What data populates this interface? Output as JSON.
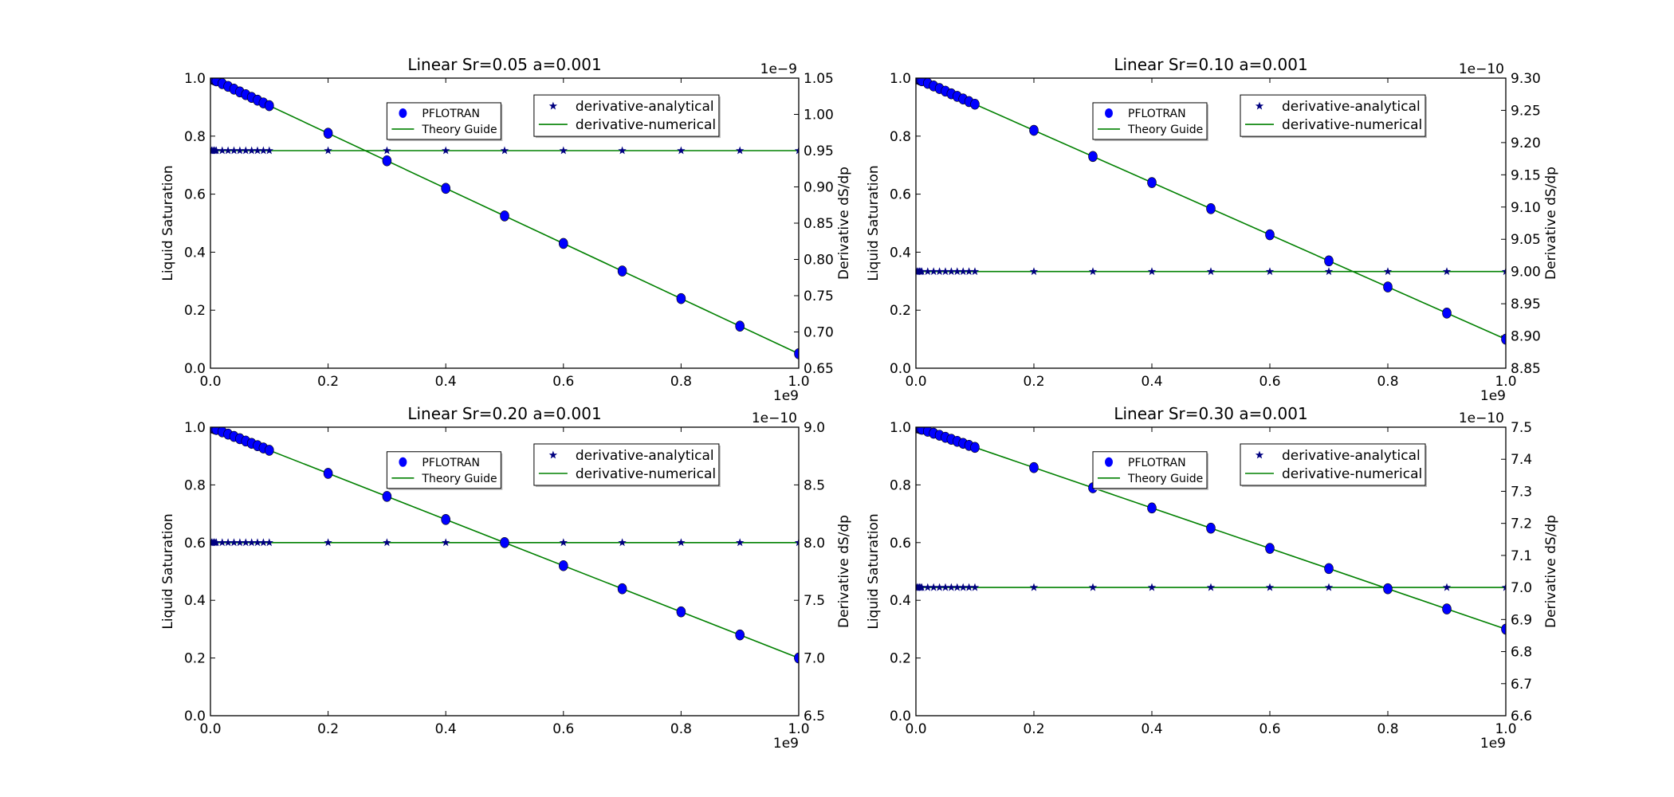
{
  "chart_data": [
    {
      "type": "line",
      "title": "Linear Sr=0.05 a=0.001",
      "xlabel": "",
      "x_offset_label": "1e9",
      "ylabel": "Liquid Saturation",
      "ylim": [
        0,
        1.0
      ],
      "yticks": [
        "0.0",
        "0.2",
        "0.4",
        "0.6",
        "0.8",
        "1.0"
      ],
      "xlim": [
        0,
        1.0
      ],
      "xticks": [
        "0.0",
        "0.2",
        "0.4",
        "0.6",
        "0.8",
        "1.0"
      ],
      "y2label": "Derivative dS/dp",
      "y2_offset_label": "1e−9",
      "y2lim": [
        0.65,
        1.05
      ],
      "y2ticks": [
        "0.65",
        "0.70",
        "0.75",
        "0.80",
        "0.85",
        "0.90",
        "0.95",
        "1.00",
        "1.05"
      ],
      "Sr": 0.05,
      "derivative": 0.95,
      "legend1": [
        "PFLOTRAN",
        "Theory Guide"
      ],
      "legend2": [
        "derivative-analytical",
        "derivative-numerical"
      ]
    },
    {
      "type": "line",
      "title": "Linear Sr=0.10 a=0.001",
      "xlabel": "",
      "x_offset_label": "1e9",
      "ylabel": "Liquid Saturation",
      "ylim": [
        0,
        1.0
      ],
      "yticks": [
        "0.0",
        "0.2",
        "0.4",
        "0.6",
        "0.8",
        "1.0"
      ],
      "xlim": [
        0,
        1.0
      ],
      "xticks": [
        "0.0",
        "0.2",
        "0.4",
        "0.6",
        "0.8",
        "1.0"
      ],
      "y2label": "Derivative dS/dp",
      "y2_offset_label": "1e−10",
      "y2lim": [
        8.85,
        9.3
      ],
      "y2ticks": [
        "8.85",
        "8.90",
        "8.95",
        "9.00",
        "9.05",
        "9.10",
        "9.15",
        "9.20",
        "9.25",
        "9.30"
      ],
      "Sr": 0.1,
      "derivative": 9.0,
      "legend1": [
        "PFLOTRAN",
        "Theory Guide"
      ],
      "legend2": [
        "derivative-analytical",
        "derivative-numerical"
      ]
    },
    {
      "type": "line",
      "title": "Linear Sr=0.20 a=0.001",
      "xlabel": "",
      "x_offset_label": "1e9",
      "ylabel": "Liquid Saturation",
      "ylim": [
        0,
        1.0
      ],
      "yticks": [
        "0.0",
        "0.2",
        "0.4",
        "0.6",
        "0.8",
        "1.0"
      ],
      "xlim": [
        0,
        1.0
      ],
      "xticks": [
        "0.0",
        "0.2",
        "0.4",
        "0.6",
        "0.8",
        "1.0"
      ],
      "y2label": "Derivative dS/dp",
      "y2_offset_label": "1e−10",
      "y2lim": [
        6.5,
        9.0
      ],
      "y2ticks": [
        "6.5",
        "7.0",
        "7.5",
        "8.0",
        "8.5",
        "9.0"
      ],
      "Sr": 0.2,
      "derivative": 8.0,
      "legend1": [
        "PFLOTRAN",
        "Theory Guide"
      ],
      "legend2": [
        "derivative-analytical",
        "derivative-numerical"
      ]
    },
    {
      "type": "line",
      "title": "Linear Sr=0.30 a=0.001",
      "xlabel": "",
      "x_offset_label": "1e9",
      "ylabel": "Liquid Saturation",
      "ylim": [
        0,
        1.0
      ],
      "yticks": [
        "0.0",
        "0.2",
        "0.4",
        "0.6",
        "0.8",
        "1.0"
      ],
      "xlim": [
        0,
        1.0
      ],
      "xticks": [
        "0.0",
        "0.2",
        "0.4",
        "0.6",
        "0.8",
        "1.0"
      ],
      "y2label": "Derivative dS/dp",
      "y2_offset_label": "1e−10",
      "y2lim": [
        6.6,
        7.5
      ],
      "y2ticks": [
        "6.6",
        "6.7",
        "6.8",
        "6.9",
        "7.0",
        "7.1",
        "7.2",
        "7.3",
        "7.4",
        "7.5"
      ],
      "Sr": 0.3,
      "derivative": 7.0,
      "legend1": [
        "PFLOTRAN",
        "Theory Guide"
      ],
      "legend2": [
        "derivative-analytical",
        "derivative-numerical"
      ]
    }
  ],
  "x_points": [
    0,
    0.002,
    0.004,
    0.006,
    0.008,
    0.01,
    0.02,
    0.03,
    0.04,
    0.05,
    0.06,
    0.07,
    0.08,
    0.09,
    0.1,
    0.2,
    0.3,
    0.4,
    0.5,
    0.6,
    0.7,
    0.8,
    0.9,
    1.0
  ],
  "colors": {
    "pflotran": "#0000ff",
    "theory": "#008000",
    "analytical": "#000080",
    "numerical": "#008000"
  }
}
